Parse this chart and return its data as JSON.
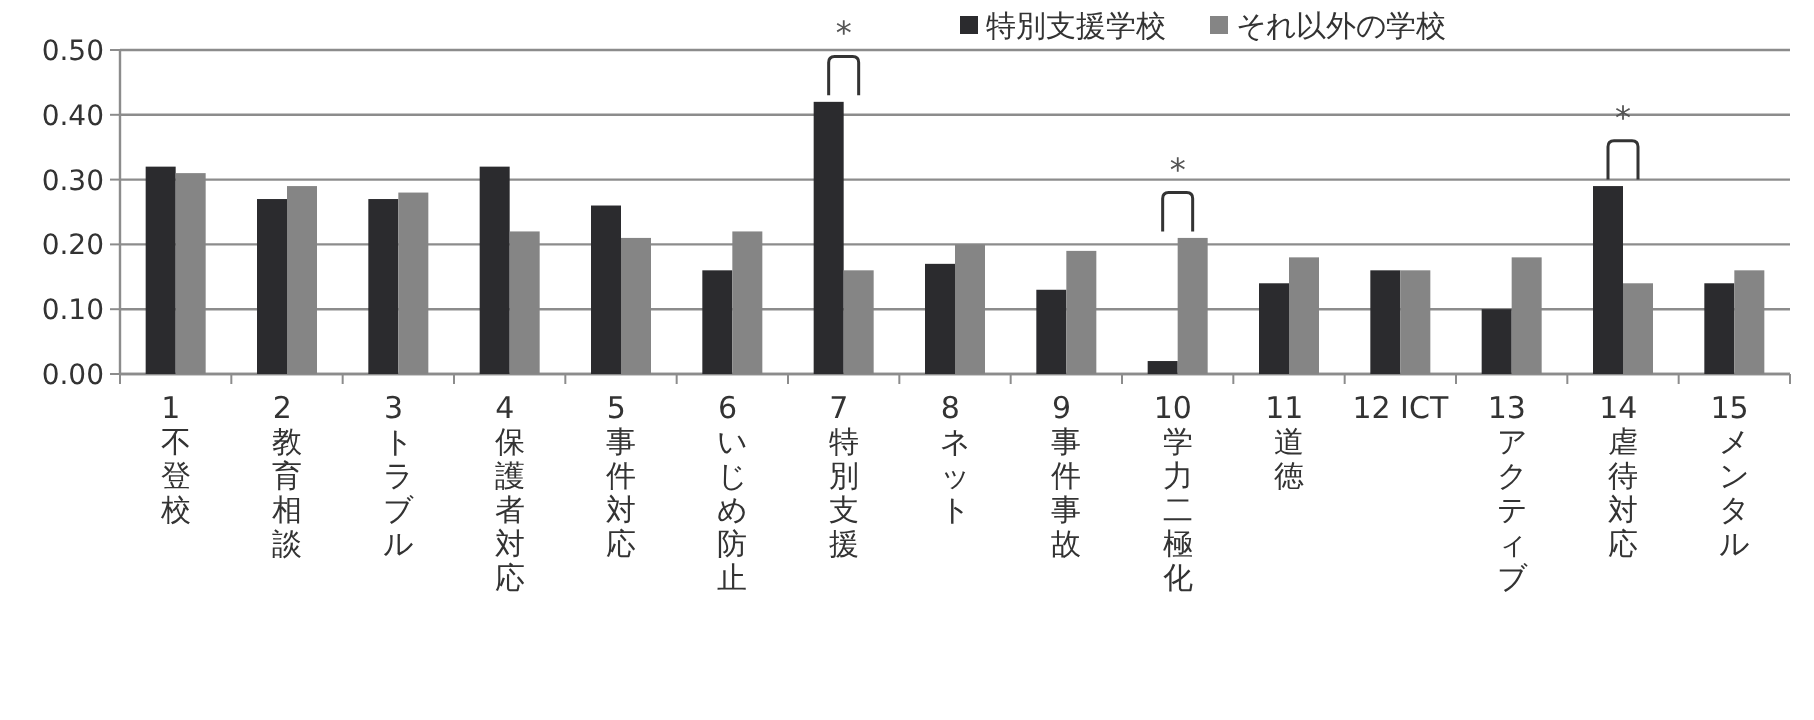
{
  "chart_data": {
    "type": "bar",
    "categories": [
      "1 不登校",
      "2 教育相談",
      "3 トラブル",
      "4 保護者対応",
      "5 事件対応",
      "6 いじめ防止",
      "7 特別支援",
      "8 ネット",
      "9 事件事故",
      "10 学力二極化",
      "11 道徳",
      "12 ICT",
      "13 アクティブ",
      "14 虐待対応",
      "15 メンタル"
    ],
    "series": [
      {
        "name": "特別支援学校",
        "color": "#2b2b2e",
        "values": [
          0.32,
          0.27,
          0.27,
          0.32,
          0.26,
          0.16,
          0.42,
          0.17,
          0.13,
          0.02,
          0.14,
          0.16,
          0.1,
          0.29,
          0.14
        ]
      },
      {
        "name": "それ以外の学校",
        "color": "#858585",
        "values": [
          0.31,
          0.29,
          0.28,
          0.22,
          0.21,
          0.22,
          0.16,
          0.2,
          0.19,
          0.21,
          0.18,
          0.16,
          0.18,
          0.14,
          0.16
        ]
      }
    ],
    "ylim": [
      0,
      0.5
    ],
    "yticks": [
      {
        "value": 0,
        "label": "0.00"
      },
      {
        "value": 0.1,
        "label": "0.10"
      },
      {
        "value": 0.2,
        "label": "0.20"
      },
      {
        "value": 0.3,
        "label": "0.30"
      },
      {
        "value": 0.4,
        "label": "0.40"
      },
      {
        "value": 0.5,
        "label": "0.50"
      }
    ],
    "grid": "y",
    "legend": "top right",
    "annotations": [
      {
        "text": "*",
        "x": "7 特別支援",
        "y": 0.42
      },
      {
        "text": "*",
        "x": "10 学力二極化",
        "y": 0.21
      },
      {
        "text": "*",
        "x": "14 虐待対応",
        "y": 0.29
      }
    ]
  }
}
